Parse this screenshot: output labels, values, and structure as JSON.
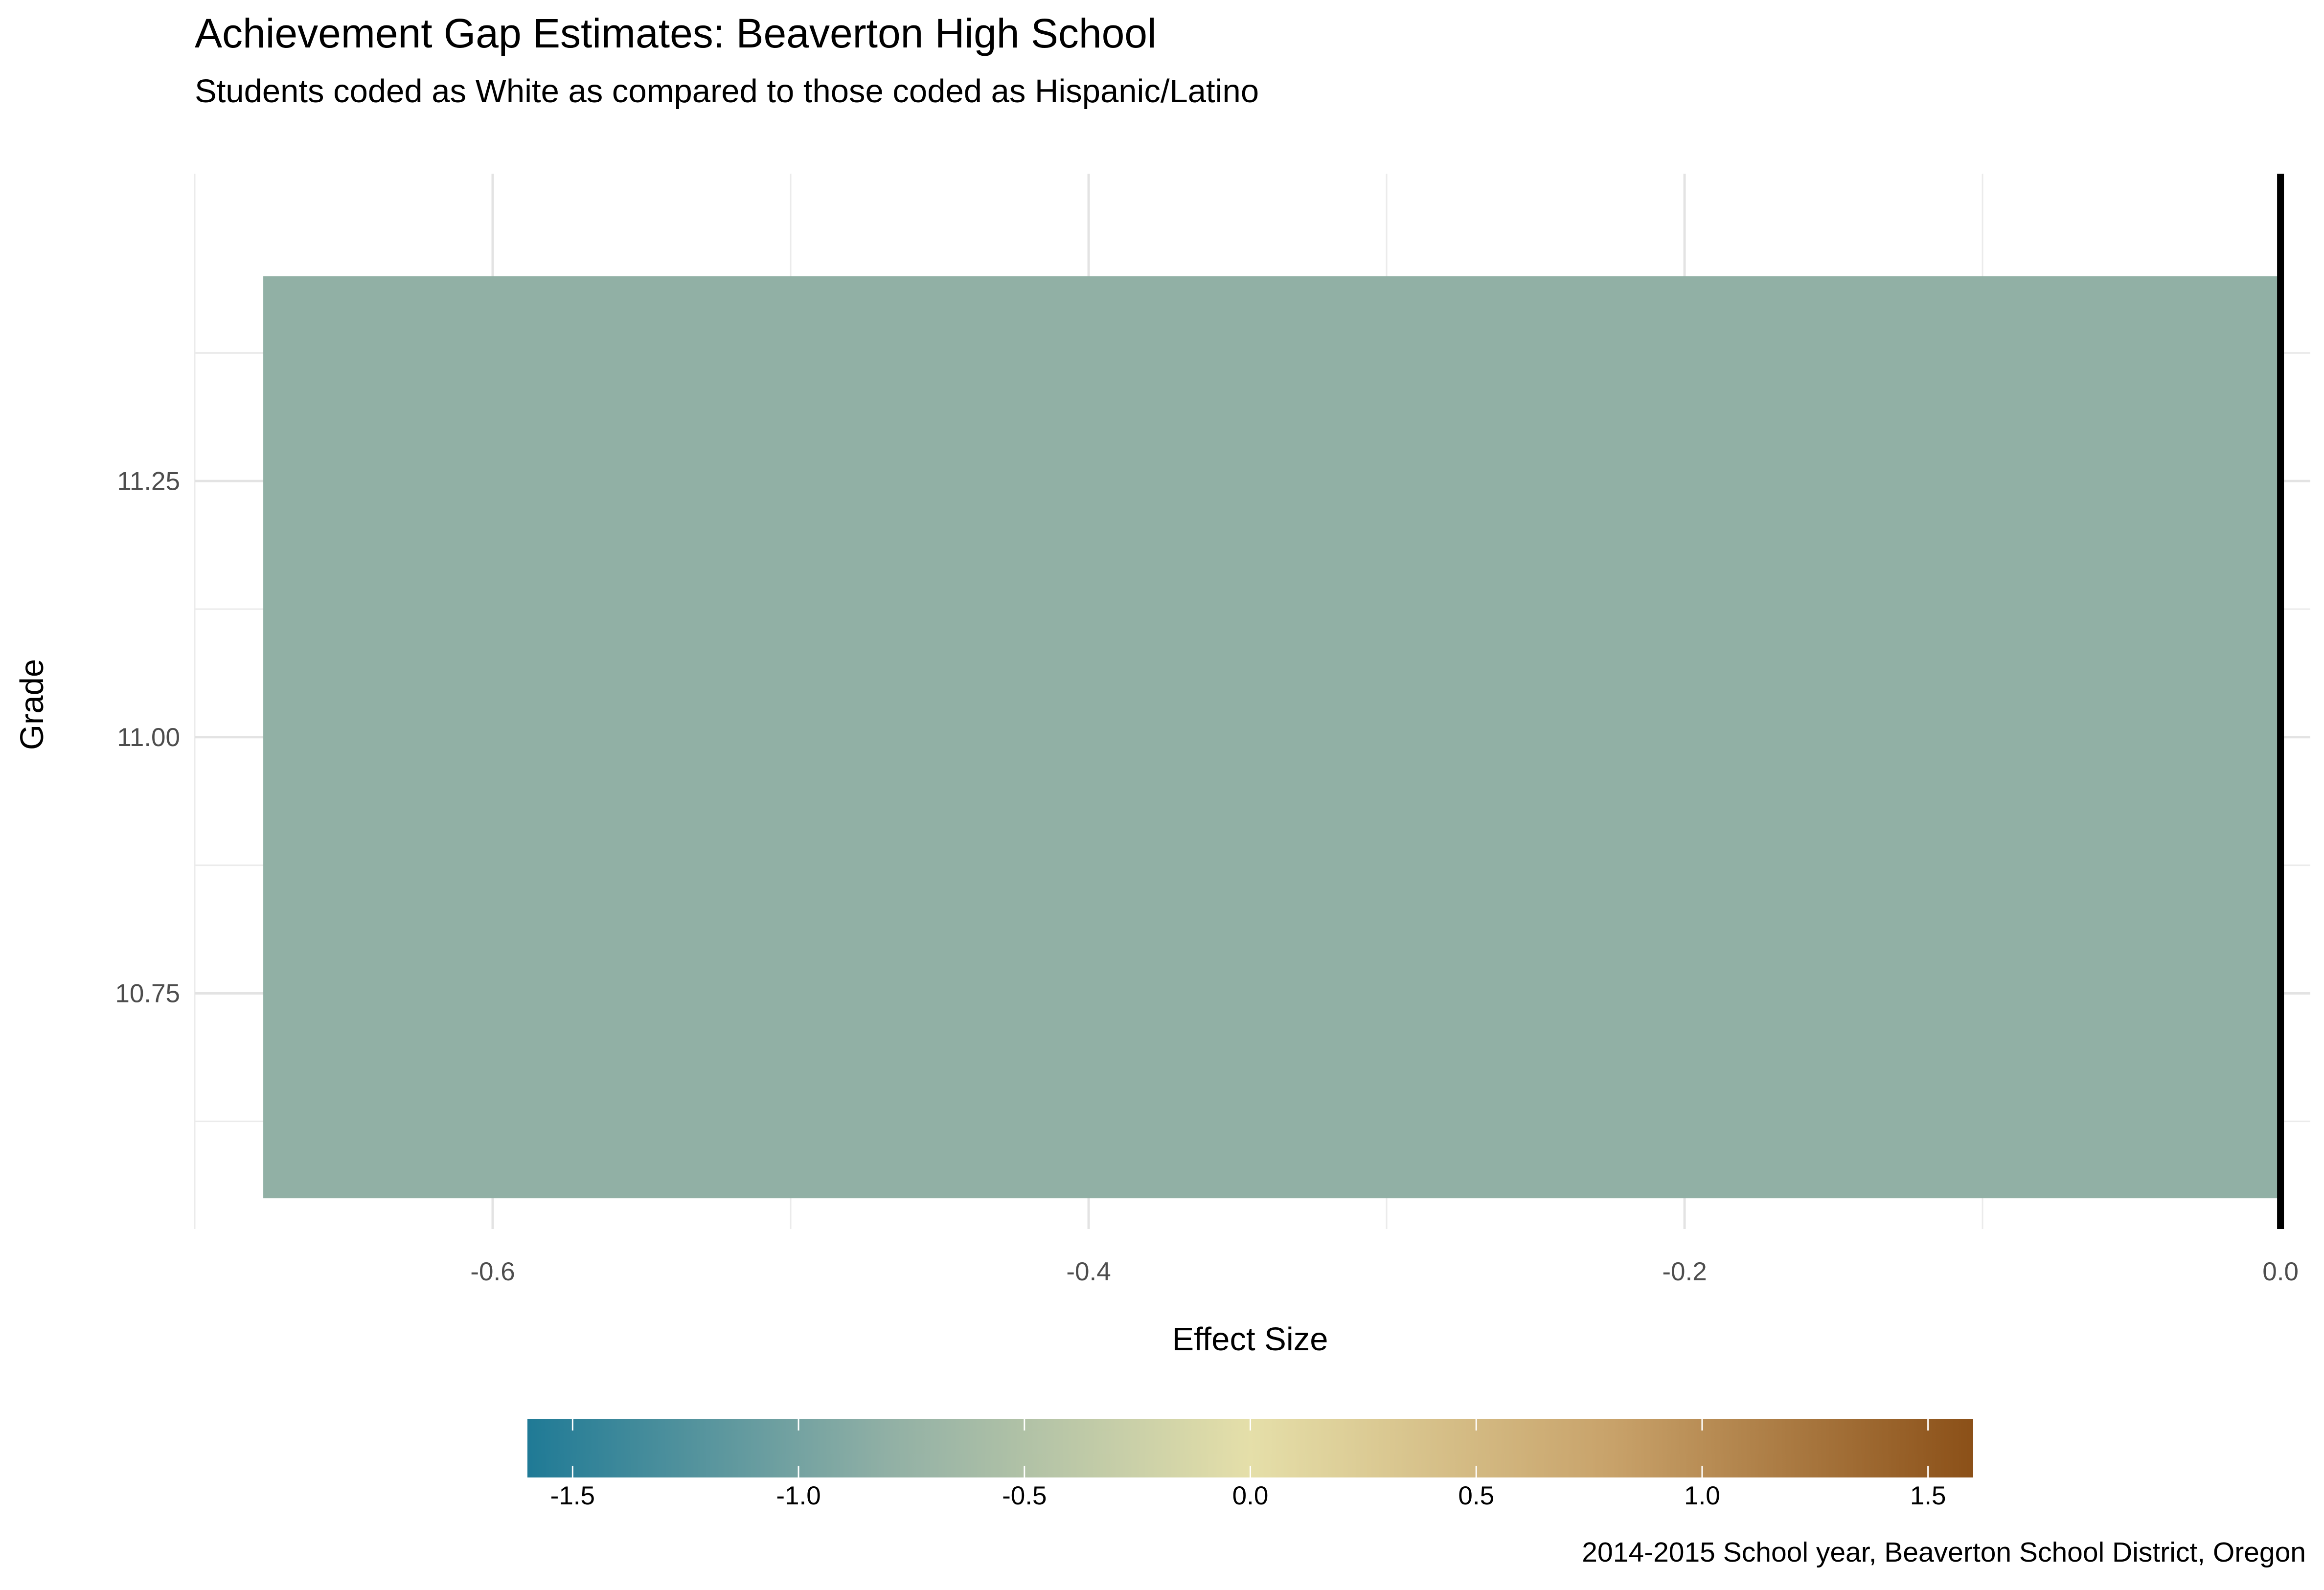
{
  "chart_data": {
    "type": "bar",
    "orientation": "horizontal",
    "title": "Achievement Gap Estimates: Beaverton High School",
    "subtitle": "Students coded as White as compared to those coded as Hispanic/Latino",
    "caption": "2014-2015 School year, Beaverton  School District, Oregon",
    "xlabel": "Effect Size",
    "ylabel": "Grade",
    "xlim": [
      -0.7,
      0.01
    ],
    "ylim": [
      10.52,
      11.55
    ],
    "x_ticks": [
      -0.6,
      -0.4,
      -0.2,
      0.0
    ],
    "x_tick_labels": [
      "-0.6",
      "-0.4",
      "-0.2",
      "0.0"
    ],
    "y_ticks": [
      10.75,
      11.0,
      11.25
    ],
    "y_tick_labels": [
      "10.75",
      "11.00",
      "11.25"
    ],
    "bars": [
      {
        "grade": 11,
        "effect_size": -0.677,
        "width": 0.9,
        "color": "#91b0a5"
      }
    ],
    "reference_line_x": 0.0,
    "grid": true,
    "legend": {
      "type": "colorbar",
      "position": "bottom",
      "range": [
        -1.6,
        1.6
      ],
      "ticks": [
        -1.5,
        -1.0,
        -0.5,
        0.0,
        0.5,
        1.0,
        1.5
      ],
      "tick_labels": [
        "-1.5",
        "-1.0",
        "-0.5",
        "0.0",
        "0.5",
        "1.0",
        "1.5"
      ],
      "colors": [
        "#1f7a96",
        "#91b0a5",
        "#e5dfa9",
        "#c8a26a",
        "#8b5018"
      ]
    }
  }
}
